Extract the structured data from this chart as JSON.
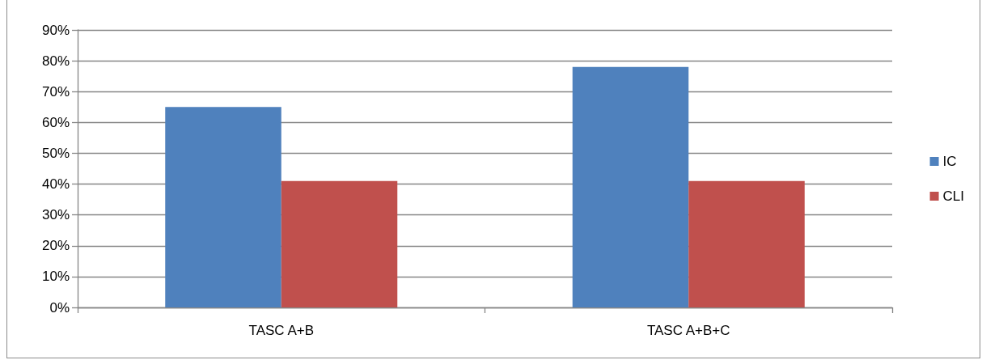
{
  "chart_data": {
    "type": "bar",
    "categories": [
      "TASC A+B",
      "TASC A+B+C"
    ],
    "series": [
      {
        "name": "IC",
        "color": "#4f81bd",
        "values": [
          65,
          78
        ]
      },
      {
        "name": "CLI",
        "color": "#c0504d",
        "values": [
          41,
          41
        ]
      }
    ],
    "ylim": [
      0,
      90
    ],
    "yticks": [
      {
        "value": 0,
        "label": "0%"
      },
      {
        "value": 10,
        "label": "10%"
      },
      {
        "value": 20,
        "label": "20%"
      },
      {
        "value": 30,
        "label": "30%"
      },
      {
        "value": 40,
        "label": "40%"
      },
      {
        "value": 50,
        "label": "50%"
      },
      {
        "value": 60,
        "label": "60%"
      },
      {
        "value": 70,
        "label": "70%"
      },
      {
        "value": 80,
        "label": "80%"
      },
      {
        "value": 90,
        "label": "90%"
      }
    ],
    "grid": "y",
    "legend": "right"
  }
}
